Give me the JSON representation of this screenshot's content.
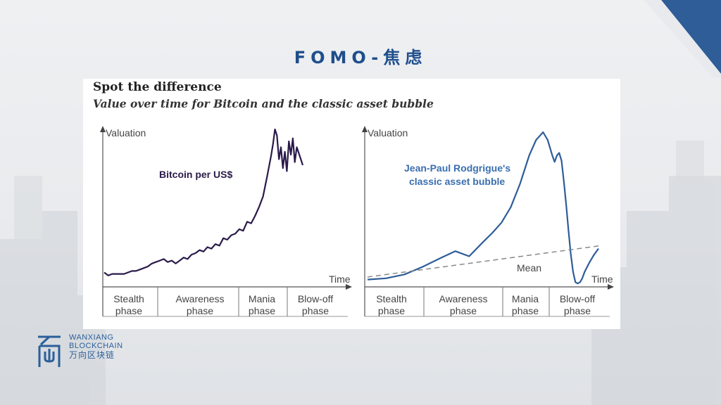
{
  "slide": {
    "title": "FOMO-焦虑",
    "accent_color": "#1f4e8c",
    "logo_icon": "wanxiang-logo-icon",
    "logo_line1": "WANXIANG",
    "logo_line2": "BLOCKCHAIN",
    "logo_line3": "万向区块链"
  },
  "figure": {
    "title": "Spot the difference",
    "subtitle": "Value over time for Bitcoin and the classic asset bubble"
  },
  "chart_data": [
    {
      "type": "line",
      "ylabel": "Valuation",
      "xlabel": "Time",
      "series": [
        {
          "name": "Bitcoin per US$",
          "color": "#2a1a4a",
          "x": [
            0,
            2,
            4,
            6,
            8,
            10,
            12,
            14,
            16,
            18,
            20,
            22,
            24,
            26,
            28,
            30,
            32,
            34,
            36,
            38,
            40,
            42,
            44,
            46,
            48,
            50,
            52,
            54,
            56,
            58,
            60,
            62,
            64,
            66,
            68,
            70,
            72,
            74,
            76,
            78,
            80,
            82,
            84,
            85,
            86,
            87,
            88,
            89,
            90,
            91,
            92,
            93,
            94,
            95,
            96,
            97,
            98,
            99,
            100
          ],
          "values": [
            4,
            2,
            3,
            3,
            3,
            3,
            4,
            5,
            5,
            6,
            7,
            8,
            10,
            11,
            12,
            13,
            11,
            12,
            10,
            12,
            14,
            13,
            16,
            17,
            19,
            18,
            21,
            20,
            23,
            22,
            27,
            26,
            29,
            30,
            33,
            32,
            38,
            37,
            42,
            48,
            55,
            68,
            82,
            90,
            100,
            96,
            80,
            88,
            74,
            85,
            72,
            92,
            83,
            94,
            78,
            88,
            84,
            80,
            76
          ]
        }
      ],
      "phases": [
        "Stealth\nphase",
        "Awareness\nphase",
        "Mania\nphase",
        "Blow-off\nphase"
      ]
    },
    {
      "type": "line",
      "ylabel": "Valuation",
      "xlabel": "Time",
      "series": [
        {
          "name": "Jean-Paul Rodgrigue's classic asset bubble",
          "color": "#2e5d98",
          "x": [
            0,
            8,
            16,
            24,
            32,
            38,
            44,
            50,
            54,
            58,
            62,
            66,
            70,
            73,
            76,
            78,
            80,
            81,
            82,
            83,
            84,
            85,
            86,
            87,
            88,
            89,
            90,
            91,
            92,
            93,
            94,
            96,
            98,
            100
          ],
          "values": [
            4,
            5,
            8,
            14,
            21,
            26,
            22,
            33,
            40,
            48,
            60,
            78,
            100,
            112,
            118,
            112,
            100,
            95,
            100,
            102,
            96,
            80,
            62,
            42,
            24,
            10,
            2,
            1,
            2,
            5,
            10,
            17,
            23,
            28
          ]
        },
        {
          "name": "Mean",
          "color": "#888888",
          "dashed": true,
          "x": [
            0,
            100
          ],
          "values": [
            6,
            30
          ]
        }
      ],
      "phases": [
        "Stealth\nphase",
        "Awareness\nphase",
        "Mania\nphase",
        "Blow-off\nphase"
      ]
    }
  ],
  "labels": {
    "left_series": "Bitcoin per US$",
    "right_series_line1": "Jean-Paul Rodgrigue's",
    "right_series_line2": "classic asset bubble",
    "mean": "Mean",
    "valuation": "Valuation",
    "time": "Time",
    "phase_word": "phase",
    "stealth": "Stealth",
    "awareness": "Awareness",
    "mania": "Mania",
    "blowoff": "Blow-off"
  }
}
